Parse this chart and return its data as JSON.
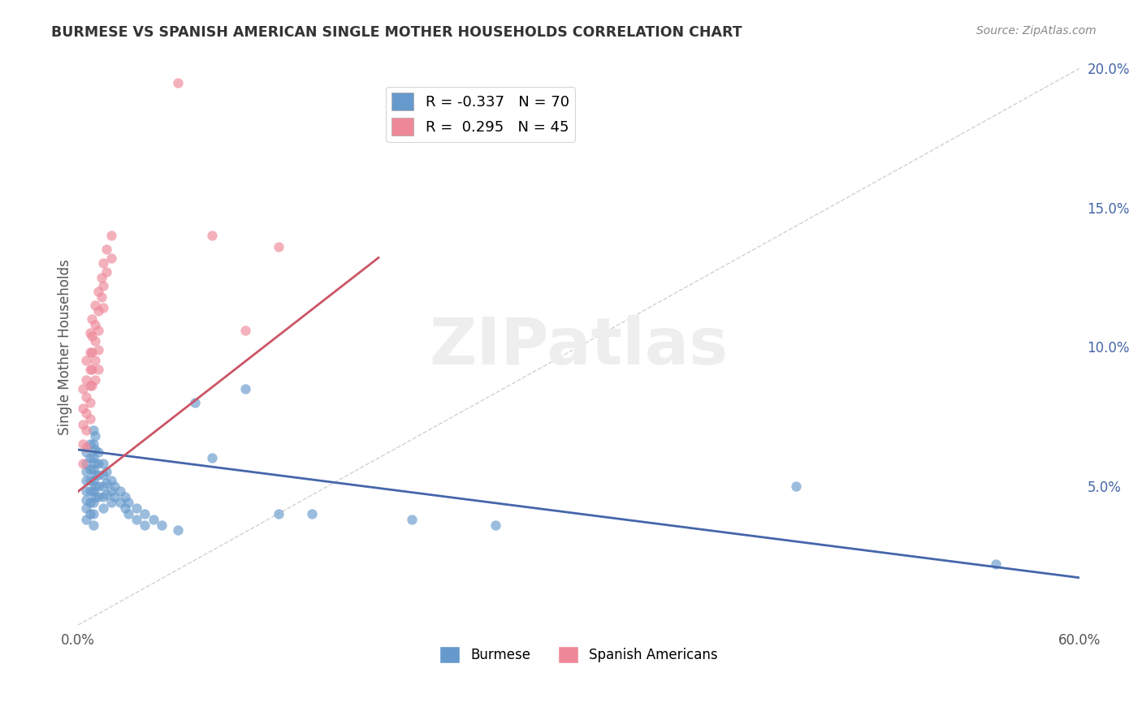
{
  "title": "BURMESE VS SPANISH AMERICAN SINGLE MOTHER HOUSEHOLDS CORRELATION CHART",
  "source": "Source: ZipAtlas.com",
  "ylabel": "Single Mother Households",
  "xlim": [
    0.0,
    0.6
  ],
  "ylim": [
    0.0,
    0.2
  ],
  "xticks": [
    0.0,
    0.1,
    0.2,
    0.3,
    0.4,
    0.5,
    0.6
  ],
  "xticklabels": [
    "0.0%",
    "",
    "",
    "",
    "",
    "",
    "60.0%"
  ],
  "yticks": [
    0.0,
    0.05,
    0.1,
    0.15,
    0.2
  ],
  "yticklabels_right": [
    "",
    "5.0%",
    "10.0%",
    "15.0%",
    "20.0%"
  ],
  "burmese_color": "#6699cc",
  "spanish_color": "#ee8899",
  "burmese_R": -0.337,
  "burmese_N": 70,
  "spanish_R": 0.295,
  "spanish_N": 45,
  "watermark": "ZIPatlas",
  "background_color": "#ffffff",
  "grid_color": "#dddddd",
  "burmese_trend_x": [
    0.0,
    0.6
  ],
  "burmese_trend_y": [
    0.063,
    0.017
  ],
  "spanish_trend_x": [
    0.0,
    0.18
  ],
  "spanish_trend_y": [
    0.048,
    0.132
  ],
  "ref_line_x": [
    0.0,
    0.6
  ],
  "ref_line_y": [
    0.0,
    0.2
  ],
  "burmese_x": [
    0.005,
    0.005,
    0.005,
    0.005,
    0.005,
    0.005,
    0.005,
    0.005,
    0.007,
    0.007,
    0.007,
    0.007,
    0.007,
    0.007,
    0.007,
    0.009,
    0.009,
    0.009,
    0.009,
    0.009,
    0.009,
    0.009,
    0.009,
    0.009,
    0.01,
    0.01,
    0.01,
    0.01,
    0.01,
    0.01,
    0.012,
    0.012,
    0.012,
    0.012,
    0.012,
    0.015,
    0.015,
    0.015,
    0.015,
    0.015,
    0.017,
    0.017,
    0.017,
    0.02,
    0.02,
    0.02,
    0.022,
    0.022,
    0.025,
    0.025,
    0.028,
    0.028,
    0.03,
    0.03,
    0.035,
    0.035,
    0.04,
    0.04,
    0.045,
    0.05,
    0.06,
    0.07,
    0.08,
    0.1,
    0.12,
    0.14,
    0.2,
    0.25,
    0.43,
    0.55
  ],
  "burmese_y": [
    0.062,
    0.058,
    0.055,
    0.052,
    0.048,
    0.045,
    0.042,
    0.038,
    0.065,
    0.06,
    0.056,
    0.052,
    0.048,
    0.044,
    0.04,
    0.07,
    0.065,
    0.06,
    0.056,
    0.052,
    0.048,
    0.044,
    0.04,
    0.036,
    0.068,
    0.063,
    0.058,
    0.054,
    0.05,
    0.046,
    0.062,
    0.058,
    0.054,
    0.05,
    0.046,
    0.058,
    0.054,
    0.05,
    0.046,
    0.042,
    0.055,
    0.051,
    0.047,
    0.052,
    0.048,
    0.044,
    0.05,
    0.046,
    0.048,
    0.044,
    0.046,
    0.042,
    0.044,
    0.04,
    0.042,
    0.038,
    0.04,
    0.036,
    0.038,
    0.036,
    0.034,
    0.08,
    0.06,
    0.085,
    0.04,
    0.04,
    0.038,
    0.036,
    0.05,
    0.022
  ],
  "spanish_x": [
    0.003,
    0.003,
    0.003,
    0.003,
    0.003,
    0.005,
    0.005,
    0.005,
    0.005,
    0.005,
    0.005,
    0.007,
    0.007,
    0.007,
    0.007,
    0.007,
    0.007,
    0.008,
    0.008,
    0.008,
    0.008,
    0.008,
    0.01,
    0.01,
    0.01,
    0.01,
    0.01,
    0.012,
    0.012,
    0.012,
    0.012,
    0.012,
    0.014,
    0.014,
    0.015,
    0.015,
    0.015,
    0.017,
    0.017,
    0.02,
    0.02,
    0.06,
    0.08,
    0.1,
    0.12
  ],
  "spanish_y": [
    0.085,
    0.078,
    0.072,
    0.065,
    0.058,
    0.095,
    0.088,
    0.082,
    0.076,
    0.07,
    0.064,
    0.105,
    0.098,
    0.092,
    0.086,
    0.08,
    0.074,
    0.11,
    0.104,
    0.098,
    0.092,
    0.086,
    0.115,
    0.108,
    0.102,
    0.095,
    0.088,
    0.12,
    0.113,
    0.106,
    0.099,
    0.092,
    0.125,
    0.118,
    0.13,
    0.122,
    0.114,
    0.135,
    0.127,
    0.14,
    0.132,
    0.195,
    0.14,
    0.106,
    0.136
  ]
}
